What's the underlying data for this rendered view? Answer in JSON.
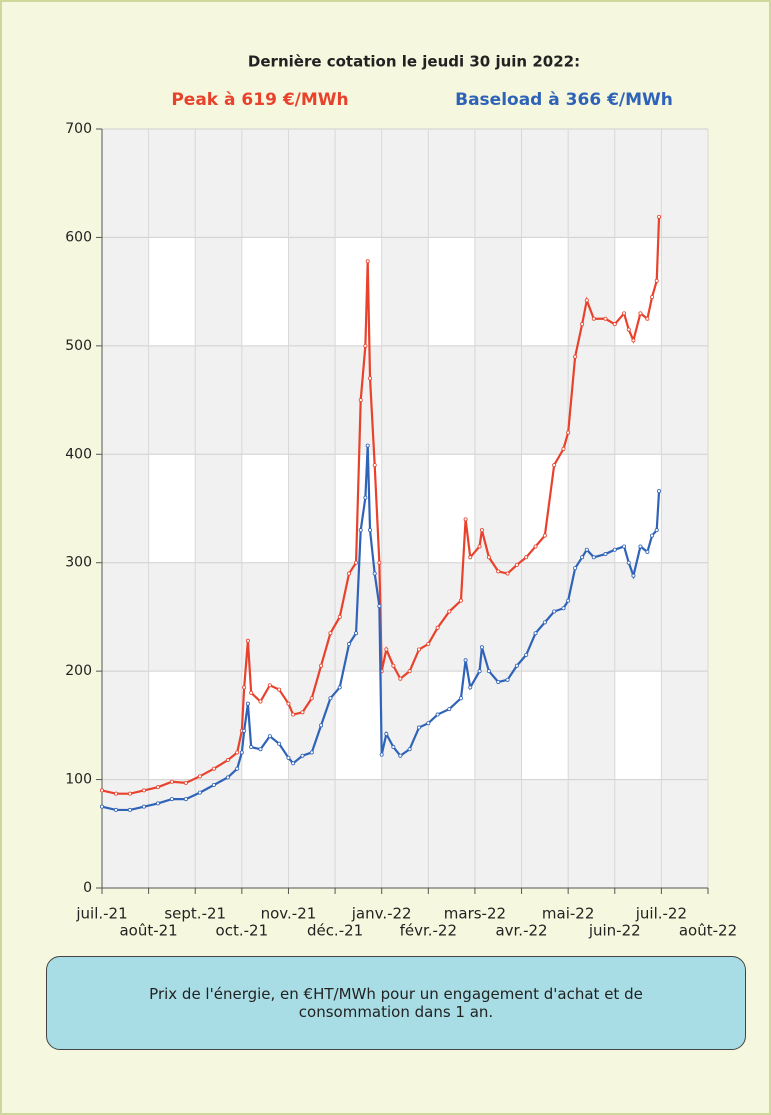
{
  "chart_data": {
    "type": "line",
    "title": "Dernière cotation le jeudi 30 juin 2022:",
    "caption": "Prix de l'énergie, en €HT/MWh pour un engagement d'achat et de consommation dans 1 an.",
    "xlim": [
      0,
      13
    ],
    "ylim": [
      0,
      700
    ],
    "yticks": [
      0,
      100,
      200,
      300,
      400,
      500,
      600,
      700
    ],
    "xticks": [
      {
        "value": 0,
        "label": "juil.-21"
      },
      {
        "value": 1,
        "label": "août-21"
      },
      {
        "value": 2,
        "label": "sept.-21"
      },
      {
        "value": 3,
        "label": "oct.-21"
      },
      {
        "value": 4,
        "label": "nov.-21"
      },
      {
        "value": 5,
        "label": "déc.-21"
      },
      {
        "value": 6,
        "label": "janv.-22"
      },
      {
        "value": 7,
        "label": "févr.-22"
      },
      {
        "value": 8,
        "label": "mars-22"
      },
      {
        "value": 9,
        "label": "avr.-22"
      },
      {
        "value": 10,
        "label": "mai-22"
      },
      {
        "value": 11,
        "label": "juin-22"
      },
      {
        "value": 12,
        "label": "juil.-22"
      },
      {
        "value": 13,
        "label": "août-22"
      }
    ],
    "x": [
      0,
      0.3,
      0.6,
      0.9,
      1.2,
      1.5,
      1.8,
      2.1,
      2.4,
      2.7,
      2.9,
      3.0,
      3.05,
      3.13,
      3.2,
      3.4,
      3.6,
      3.8,
      4.0,
      4.1,
      4.3,
      4.5,
      4.7,
      4.9,
      5.1,
      5.3,
      5.45,
      5.55,
      5.65,
      5.7,
      5.75,
      5.85,
      5.95,
      6.0,
      6.1,
      6.25,
      6.4,
      6.6,
      6.8,
      7.0,
      7.2,
      7.45,
      7.7,
      7.8,
      7.9,
      8.1,
      8.15,
      8.3,
      8.5,
      8.7,
      8.9,
      9.1,
      9.3,
      9.5,
      9.7,
      9.9,
      10.0,
      10.15,
      10.3,
      10.4,
      10.55,
      10.8,
      11.0,
      11.2,
      11.3,
      11.4,
      11.55,
      11.7,
      11.8,
      11.9,
      11.95
    ],
    "series": [
      {
        "name": "Peak à 619 €/MWh",
        "color": "#e8422c",
        "values": [
          90,
          87,
          87,
          90,
          93,
          98,
          97,
          103,
          110,
          118,
          125,
          145,
          185,
          228,
          180,
          172,
          187,
          183,
          170,
          160,
          162,
          175,
          205,
          235,
          250,
          290,
          300,
          450,
          500,
          578,
          470,
          390,
          300,
          200,
          220,
          205,
          193,
          200,
          220,
          225,
          240,
          255,
          265,
          340,
          305,
          315,
          330,
          305,
          292,
          290,
          298,
          305,
          315,
          325,
          390,
          405,
          420,
          490,
          520,
          542,
          525,
          525,
          520,
          530,
          515,
          505,
          530,
          525,
          545,
          560,
          619
        ]
      },
      {
        "name": "Baseload à 366 €/MWh",
        "color": "#2f63b8",
        "values": [
          75,
          72,
          72,
          75,
          78,
          82,
          82,
          88,
          95,
          102,
          110,
          125,
          145,
          170,
          130,
          128,
          140,
          133,
          120,
          115,
          122,
          125,
          150,
          175,
          185,
          225,
          235,
          330,
          360,
          408,
          330,
          290,
          260,
          123,
          142,
          130,
          122,
          128,
          148,
          152,
          160,
          165,
          175,
          210,
          185,
          200,
          222,
          200,
          190,
          192,
          205,
          215,
          235,
          245,
          255,
          258,
          265,
          295,
          305,
          312,
          305,
          308,
          312,
          315,
          300,
          288,
          315,
          310,
          325,
          330,
          366
        ]
      }
    ]
  }
}
